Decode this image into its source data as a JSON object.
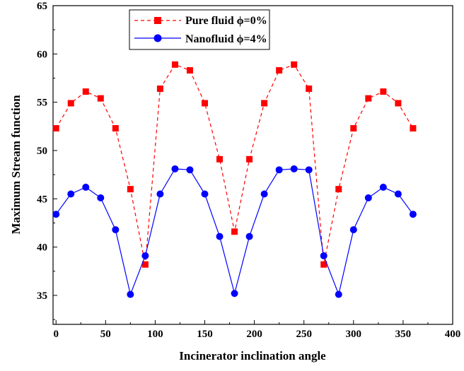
{
  "chart_data": {
    "type": "line",
    "xlabel": "Incinerator inclination angle",
    "ylabel": "Maximum Stream function",
    "xlim": [
      -3,
      400
    ],
    "ylim": [
      32,
      65
    ],
    "xticks": [
      0,
      50,
      100,
      150,
      200,
      250,
      300,
      350,
      400
    ],
    "yticks": [
      35,
      40,
      45,
      50,
      55,
      60,
      65
    ],
    "legend_position": "top-left",
    "grid": false,
    "x": [
      0,
      15,
      30,
      45,
      60,
      75,
      90,
      105,
      120,
      135,
      150,
      165,
      180,
      195,
      210,
      225,
      240,
      255,
      270,
      285,
      300,
      315,
      330,
      345,
      360
    ],
    "series": [
      {
        "name": "Pure fluid ϕ=0%",
        "color": "#ff0000",
        "line_style": "dashed",
        "marker": "square",
        "values": [
          52.3,
          54.9,
          56.1,
          55.4,
          52.3,
          46.0,
          38.2,
          56.4,
          58.9,
          58.3,
          54.9,
          49.1,
          41.6,
          49.1,
          54.9,
          58.3,
          58.9,
          56.4,
          38.2,
          46.0,
          52.3,
          55.4,
          56.1,
          54.9,
          52.3
        ]
      },
      {
        "name": "Nanofluid ϕ=4%",
        "color": "#0000ff",
        "line_style": "solid",
        "marker": "circle",
        "values": [
          43.4,
          45.5,
          46.2,
          45.1,
          41.8,
          35.1,
          39.1,
          45.5,
          48.1,
          48.0,
          45.5,
          41.1,
          35.2,
          41.1,
          45.5,
          48.0,
          48.1,
          48.0,
          39.1,
          35.1,
          41.8,
          45.1,
          46.2,
          45.5,
          43.4
        ]
      }
    ]
  }
}
